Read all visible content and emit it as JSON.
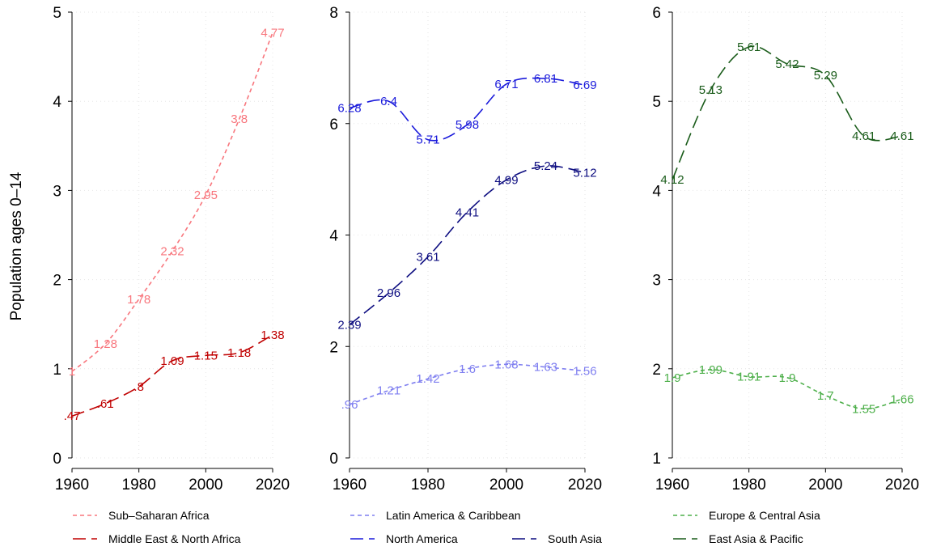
{
  "chart_data": [
    {
      "type": "line",
      "title": "",
      "xlabel": "",
      "ylabel": "Population ages 0–14",
      "xlim": [
        1960,
        2020
      ],
      "ylim": [
        0,
        5
      ],
      "xticks": [
        "1960",
        "1980",
        "2000",
        "2020"
      ],
      "yticks": [
        "0",
        "1",
        "2",
        "3",
        "4",
        "5"
      ],
      "grid": true,
      "legend_position": "bottom",
      "series": [
        {
          "name": "Sub–Saharan Africa",
          "color": "#f8767d",
          "dash": "short-dash",
          "x": [
            1960,
            1970,
            1980,
            1990,
            2000,
            2010,
            2020
          ],
          "values": [
            0.97,
            1.28,
            1.78,
            2.32,
            2.95,
            3.8,
            4.77
          ],
          "labels": [
            "1",
            "1.28",
            "1.78",
            "2.32",
            "2.95",
            "3.8",
            "4.77"
          ]
        },
        {
          "name": "Middle East & North Africa",
          "color": "#c00000",
          "dash": "long-dash",
          "x": [
            1960,
            1970,
            1980,
            1990,
            2000,
            2010,
            2020
          ],
          "values": [
            0.47,
            0.61,
            0.8,
            1.09,
            1.15,
            1.18,
            1.38
          ],
          "labels": [
            ".47",
            ".61",
            ".8",
            "1.09",
            "1.15",
            "1.18",
            "1.38"
          ]
        }
      ]
    },
    {
      "type": "line",
      "title": "",
      "xlabel": "",
      "ylabel": "",
      "xlim": [
        1960,
        2020
      ],
      "ylim": [
        0,
        8
      ],
      "xticks": [
        "1960",
        "1980",
        "2000",
        "2020"
      ],
      "yticks": [
        "0",
        "2",
        "4",
        "6",
        "8"
      ],
      "grid": true,
      "legend_position": "bottom",
      "series": [
        {
          "name": "Latin America & Caribbean",
          "color": "#7f7ff0",
          "dash": "short-dash",
          "x": [
            1960,
            1970,
            1980,
            1990,
            2000,
            2010,
            2020
          ],
          "values": [
            0.96,
            1.21,
            1.42,
            1.6,
            1.68,
            1.63,
            1.56
          ],
          "labels": [
            ".96",
            "1.21",
            "1.42",
            "1.6",
            "1.68",
            "1.63",
            "1.56"
          ]
        },
        {
          "name": "North America",
          "color": "#1a1adb",
          "dash": "long-dash",
          "x": [
            1960,
            1970,
            1980,
            1990,
            2000,
            2010,
            2020
          ],
          "values": [
            6.28,
            6.4,
            5.71,
            5.98,
            6.71,
            6.81,
            6.69
          ],
          "labels": [
            "6.28",
            "6.4",
            "5.71",
            "5.98",
            "6.71",
            "6.81",
            "6.69"
          ]
        },
        {
          "name": "South Asia",
          "color": "#0d0d80",
          "dash": "long-dash",
          "x": [
            1960,
            1970,
            1980,
            1990,
            2000,
            2010,
            2020
          ],
          "values": [
            2.39,
            2.96,
            3.61,
            4.41,
            4.99,
            5.24,
            5.12
          ],
          "labels": [
            "2.39",
            "2.96",
            "3.61",
            "4.41",
            "4.99",
            "5.24",
            "5.12"
          ]
        }
      ]
    },
    {
      "type": "line",
      "title": "",
      "xlabel": "",
      "ylabel": "",
      "xlim": [
        1960,
        2020
      ],
      "ylim": [
        1,
        6
      ],
      "xticks": [
        "1960",
        "1980",
        "2000",
        "2020"
      ],
      "yticks": [
        "1",
        "2",
        "3",
        "4",
        "5",
        "6"
      ],
      "grid": true,
      "legend_position": "bottom",
      "series": [
        {
          "name": "Europe & Central Asia",
          "color": "#4daf4a",
          "dash": "short-dash",
          "x": [
            1960,
            1970,
            1980,
            1990,
            2000,
            2010,
            2020
          ],
          "values": [
            1.9,
            1.99,
            1.91,
            1.9,
            1.7,
            1.55,
            1.66
          ],
          "labels": [
            "1.9",
            "1.99",
            "1.91",
            "1.9",
            "1.7",
            "1.55",
            "1.66"
          ]
        },
        {
          "name": "East Asia & Pacific",
          "color": "#1a5c1a",
          "dash": "long-dash",
          "x": [
            1960,
            1970,
            1980,
            1990,
            2000,
            2010,
            2020
          ],
          "values": [
            4.12,
            5.13,
            5.61,
            5.42,
            5.29,
            4.61,
            4.61
          ],
          "labels": [
            "4.12",
            "5.13",
            "5.61",
            "5.42",
            "5.29",
            "4.61",
            "4.61"
          ]
        }
      ]
    }
  ]
}
